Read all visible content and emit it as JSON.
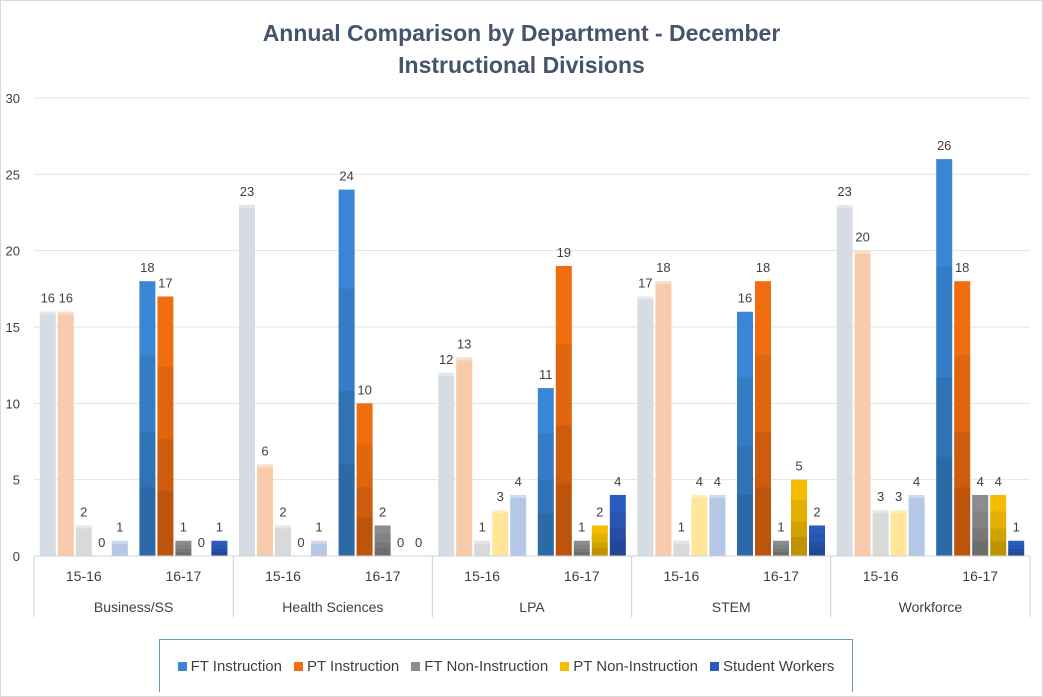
{
  "chart_data": {
    "type": "bar",
    "title": "Annual Comparison by Department - December",
    "subtitle": "Instructional Divisions",
    "ylim": [
      0,
      30
    ],
    "yticks": [
      0,
      5,
      10,
      15,
      20,
      25,
      30
    ],
    "grid": true,
    "legend_position": "bottom",
    "groups": [
      {
        "name": "Business/SS",
        "years": [
          {
            "label": "15-16",
            "values": [
              16,
              16,
              2,
              0,
              1
            ]
          },
          {
            "label": "16-17",
            "values": [
              18,
              17,
              1,
              0,
              1
            ]
          }
        ]
      },
      {
        "name": "Health Sciences",
        "years": [
          {
            "label": "15-16",
            "values": [
              23,
              6,
              2,
              0,
              1
            ]
          },
          {
            "label": "16-17",
            "values": [
              24,
              10,
              2,
              0,
              0
            ]
          }
        ]
      },
      {
        "name": "LPA",
        "years": [
          {
            "label": "15-16",
            "values": [
              12,
              13,
              1,
              3,
              4
            ]
          },
          {
            "label": "16-17",
            "values": [
              11,
              19,
              1,
              2,
              4
            ]
          }
        ]
      },
      {
        "name": "STEM",
        "years": [
          {
            "label": "15-16",
            "values": [
              17,
              18,
              1,
              4,
              4
            ]
          },
          {
            "label": "16-17",
            "values": [
              16,
              18,
              1,
              5,
              2
            ]
          }
        ]
      },
      {
        "name": "Workforce",
        "years": [
          {
            "label": "15-16",
            "values": [
              23,
              20,
              3,
              3,
              4
            ]
          },
          {
            "label": "16-17",
            "values": [
              26,
              18,
              4,
              4,
              1
            ]
          }
        ]
      }
    ],
    "series": [
      {
        "name": "FT Instruction",
        "color": "#3a86d6",
        "faded_color": "#d6dce4"
      },
      {
        "name": "PT Instruction",
        "color": "#f06d10",
        "faded_color": "#f8cbad"
      },
      {
        "name": "FT Non-Instruction",
        "color": "#8c8c8c",
        "faded_color": "#d9d9d9"
      },
      {
        "name": "PT Non-Instruction",
        "color": "#f5bd00",
        "faded_color": "#ffe699"
      },
      {
        "name": "Student Workers",
        "color": "#2a5cbf",
        "faded_color": "#b4c7e7"
      }
    ]
  }
}
